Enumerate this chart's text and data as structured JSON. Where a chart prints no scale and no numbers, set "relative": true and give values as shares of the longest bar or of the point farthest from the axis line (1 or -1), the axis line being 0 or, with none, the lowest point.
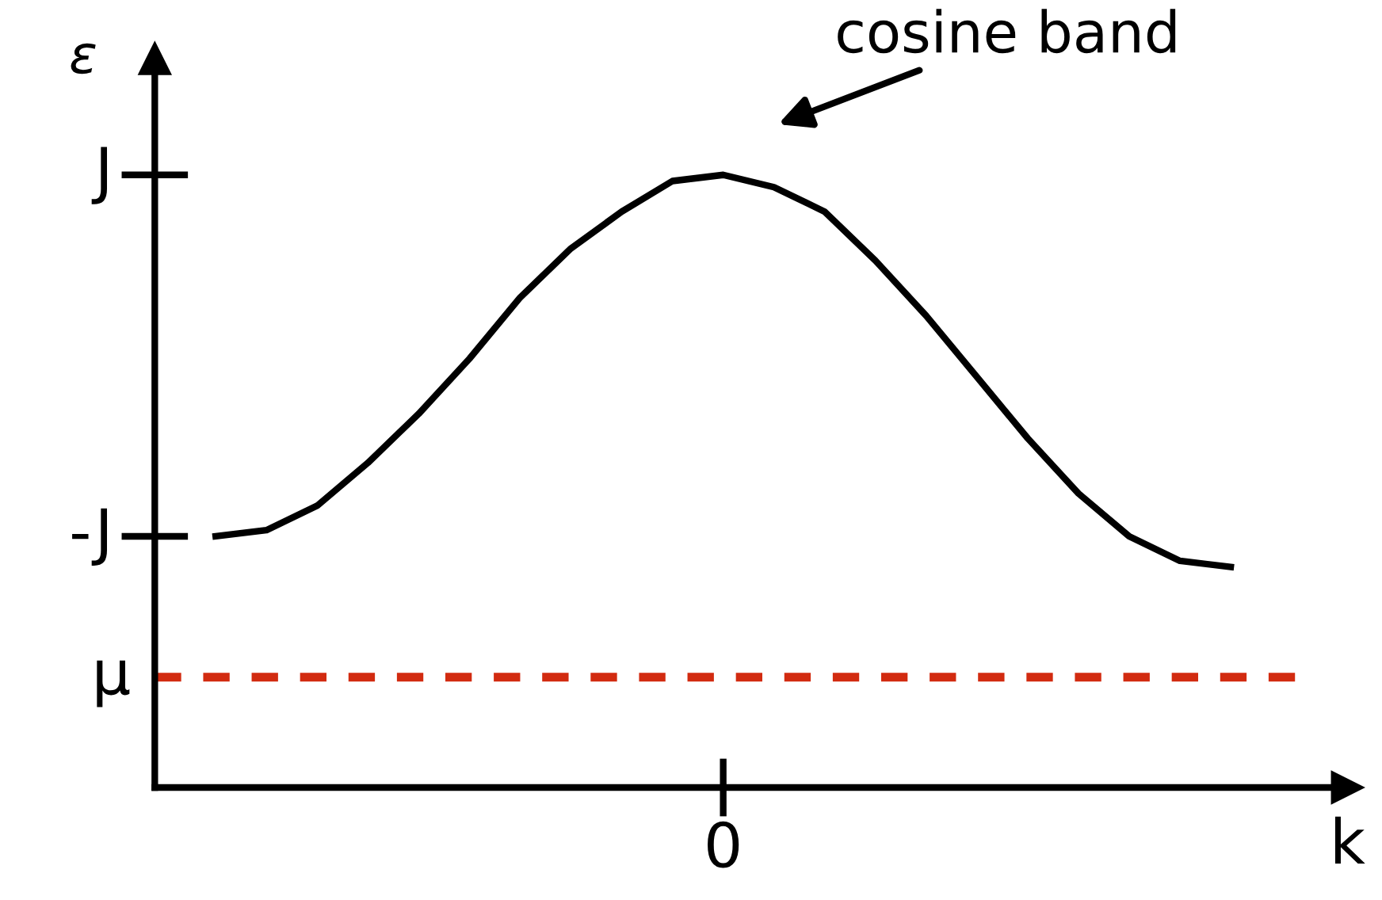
{
  "chart_data": {
    "type": "line",
    "xlabel": "k",
    "ylabel": "ε",
    "relative": true,
    "categories": [
      null,
      null,
      null,
      null,
      null,
      null,
      null,
      null,
      null,
      null,
      null,
      null,
      null,
      null,
      null,
      null,
      null,
      null,
      null,
      null,
      null
    ],
    "series": [
      {
        "color": "#000000",
        "values": [
          0.41,
          0.42,
          0.46,
          0.53,
          0.61,
          0.7,
          0.8,
          0.88,
          0.94,
          0.99,
          1.0,
          0.98,
          0.94,
          0.86,
          0.77,
          0.67,
          0.57,
          0.48,
          0.41,
          0.37,
          0.36
        ]
      }
    ],
    "ref_lines": [
      {
        "axis": "y",
        "value": 0.18,
        "label": "μ",
        "color": "#d22b10",
        "line_style": "dashed"
      }
    ],
    "annotations": [
      "cosine band",
      "0",
      "J",
      "-J"
    ],
    "legend": false,
    "marker": "none",
    "line_style": "solid"
  }
}
